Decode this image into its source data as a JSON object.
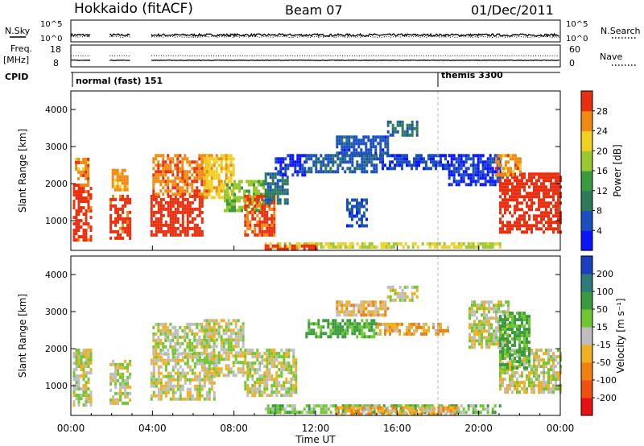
{
  "header": {
    "title": "Hokkaido (fitACF)",
    "beam": "Beam 07",
    "date": "01/Dec/2011"
  },
  "nsky_panel": {
    "left_label": "N.Sky",
    "right_label": "N.Search",
    "ticks_left": [
      "10^5",
      "10^0"
    ],
    "ticks_right": [
      "10^5",
      "10^0"
    ]
  },
  "freq_panel": {
    "left_label_1": "Freq.",
    "left_label_2": "[MHz]",
    "right_label": "Nave",
    "ticks_left": [
      "18",
      "8"
    ],
    "ticks_right": [
      "60",
      "0"
    ]
  },
  "cpid_panel": {
    "label": "CPID",
    "modes": [
      {
        "name": "normal (fast) 151",
        "start_hour": 0
      },
      {
        "name": "themis 3300",
        "start_hour": 18
      }
    ]
  },
  "chart_data": [
    {
      "type": "heatmap",
      "name": "power",
      "ylabel": "Slant Range [km]",
      "yticks": [
        "1000",
        "2000",
        "3000",
        "4000"
      ],
      "ylim": [
        200,
        4500
      ],
      "xlim": [
        0,
        24
      ],
      "colorbar": {
        "label": "Power [dB]",
        "levels": [
          0,
          4,
          8,
          12,
          16,
          20,
          24,
          28,
          32
        ],
        "tick_labels": [
          "4",
          "8",
          "12",
          "16",
          "20",
          "24",
          "28"
        ],
        "colors": [
          "#0a14ff",
          "#1a4fbf",
          "#2c7a5a",
          "#3a9a40",
          "#9ac830",
          "#f0d020",
          "#f08a10",
          "#e83010"
        ]
      },
      "regions": [
        {
          "x": [
            0.1,
            1.0
          ],
          "y": [
            500,
            2000
          ],
          "value": 30
        },
        {
          "x": [
            0.2,
            0.8
          ],
          "y": [
            2000,
            2700
          ],
          "value": 26
        },
        {
          "x": [
            1.9,
            2.9
          ],
          "y": [
            500,
            1700
          ],
          "value": 30
        },
        {
          "x": [
            2.0,
            2.8
          ],
          "y": [
            1800,
            2400
          ],
          "value": 25
        },
        {
          "x": [
            3.9,
            6.5
          ],
          "y": [
            600,
            1700
          ],
          "value": 31
        },
        {
          "x": [
            4.0,
            6.8
          ],
          "y": [
            1700,
            2800
          ],
          "value": 27
        },
        {
          "x": [
            6.5,
            8.0
          ],
          "y": [
            1600,
            2800
          ],
          "value": 23
        },
        {
          "x": [
            7.5,
            9.5
          ],
          "y": [
            1300,
            2100
          ],
          "value": 17
        },
        {
          "x": [
            8.5,
            10.0
          ],
          "y": [
            600,
            1700
          ],
          "value": 29
        },
        {
          "x": [
            9.5,
            10.6
          ],
          "y": [
            1500,
            2300
          ],
          "value": 9
        },
        {
          "x": [
            10.0,
            11.5
          ],
          "y": [
            2200,
            2800
          ],
          "value": 3
        },
        {
          "x": [
            11.5,
            15.0
          ],
          "y": [
            2300,
            2800
          ],
          "value": 7
        },
        {
          "x": [
            15.0,
            18.5
          ],
          "y": [
            2400,
            2800
          ],
          "value": 5
        },
        {
          "x": [
            13.0,
            15.5
          ],
          "y": [
            2850,
            3300
          ],
          "value": 6
        },
        {
          "x": [
            15.5,
            17.0
          ],
          "y": [
            3300,
            3700
          ],
          "value": 9
        },
        {
          "x": [
            13.5,
            14.5
          ],
          "y": [
            900,
            1600
          ],
          "value": 6
        },
        {
          "x": [
            9.5,
            21.0
          ],
          "y": [
            280,
            420
          ],
          "value": 20
        },
        {
          "x": [
            9.5,
            12.0
          ],
          "y": [
            220,
            360
          ],
          "value": 30
        },
        {
          "x": [
            18.5,
            21.0
          ],
          "y": [
            2000,
            2800
          ],
          "value": 4
        },
        {
          "x": [
            21.0,
            24.0
          ],
          "y": [
            700,
            2300
          ],
          "value": 31
        },
        {
          "x": [
            20.8,
            22.0
          ],
          "y": [
            2200,
            2800
          ],
          "value": 26
        }
      ]
    },
    {
      "type": "heatmap",
      "name": "velocity",
      "ylabel": "Slant Range [km]",
      "yticks": [
        "1000",
        "2000",
        "3000",
        "4000"
      ],
      "ylim": [
        200,
        4500
      ],
      "xlim": [
        0,
        24
      ],
      "xlabel": "Time UT",
      "xticks": [
        "00:00",
        "04:00",
        "08:00",
        "12:00",
        "16:00",
        "20:00",
        "00:00"
      ],
      "colorbar": {
        "label": "Velocity [m s⁻¹]",
        "levels": [
          -250,
          -200,
          -100,
          -50,
          -15,
          15,
          50,
          100,
          200,
          250
        ],
        "tick_labels": [
          "-200",
          "-100",
          "-50",
          "-15",
          "15",
          "50",
          "100",
          "200"
        ],
        "colors": [
          "#e81010",
          "#f05010",
          "#f08010",
          "#f0b020",
          "#bebebe",
          "#70c830",
          "#3a9a40",
          "#2c7a7a",
          "#1a3fbf"
        ]
      },
      "regions": [
        {
          "x": [
            0.1,
            1.0
          ],
          "y": [
            500,
            2000
          ],
          "value": 0
        },
        {
          "x": [
            1.9,
            2.9
          ],
          "y": [
            500,
            1700
          ],
          "value": 0
        },
        {
          "x": [
            3.9,
            7.0
          ],
          "y": [
            600,
            1900
          ],
          "value": 0
        },
        {
          "x": [
            4.0,
            7.0
          ],
          "y": [
            1900,
            2700
          ],
          "value": 5
        },
        {
          "x": [
            6.5,
            8.5
          ],
          "y": [
            1300,
            2800
          ],
          "value": 0
        },
        {
          "x": [
            8.5,
            11.0
          ],
          "y": [
            700,
            2000
          ],
          "value": 0
        },
        {
          "x": [
            11.5,
            15.0
          ],
          "y": [
            2300,
            2800
          ],
          "value": 60
        },
        {
          "x": [
            15.0,
            18.5
          ],
          "y": [
            2400,
            2700
          ],
          "value": -40
        },
        {
          "x": [
            13.0,
            15.5
          ],
          "y": [
            2900,
            3300
          ],
          "value": -30
        },
        {
          "x": [
            15.5,
            17.0
          ],
          "y": [
            3300,
            3700
          ],
          "value": 0
        },
        {
          "x": [
            9.5,
            21.0
          ],
          "y": [
            250,
            500
          ],
          "value": 40
        },
        {
          "x": [
            13.0,
            19.0
          ],
          "y": [
            250,
            450
          ],
          "value": -40
        },
        {
          "x": [
            19.5,
            21.5
          ],
          "y": [
            2000,
            3300
          ],
          "value": 0
        },
        {
          "x": [
            21.0,
            24.0
          ],
          "y": [
            800,
            2000
          ],
          "value": 0
        },
        {
          "x": [
            21.0,
            22.5
          ],
          "y": [
            1500,
            3000
          ],
          "value": 60
        }
      ]
    }
  ]
}
